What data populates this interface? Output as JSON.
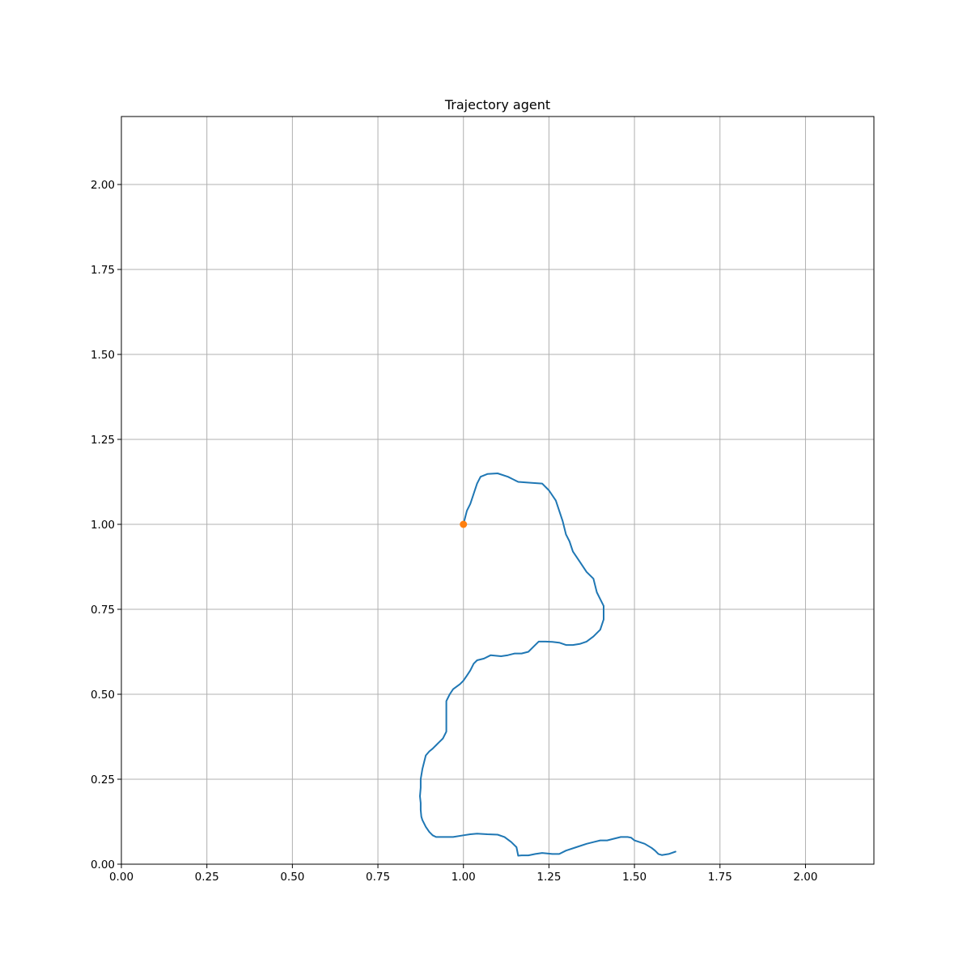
{
  "chart_data": {
    "type": "line",
    "title": "Trajectory agent",
    "xlabel": "",
    "ylabel": "",
    "xlim": [
      0,
      2.2
    ],
    "ylim": [
      0,
      2.2
    ],
    "grid": true,
    "xticks": [
      "0.00",
      "0.25",
      "0.50",
      "0.75",
      "1.00",
      "1.25",
      "1.50",
      "1.75",
      "2.00"
    ],
    "yticks": [
      "0.00",
      "0.25",
      "0.50",
      "0.75",
      "1.00",
      "1.25",
      "1.50",
      "1.75",
      "2.00"
    ],
    "series": [
      {
        "type": "line",
        "color": "#1f77b4",
        "x": [
          1.0,
          1.01,
          1.02,
          1.03,
          1.04,
          1.05,
          1.07,
          1.1,
          1.13,
          1.16,
          1.2,
          1.23,
          1.25,
          1.27,
          1.28,
          1.29,
          1.3,
          1.31,
          1.32,
          1.34,
          1.36,
          1.38,
          1.39,
          1.4,
          1.41,
          1.41,
          1.4,
          1.38,
          1.36,
          1.34,
          1.32,
          1.3,
          1.28,
          1.26,
          1.24,
          1.22,
          1.21,
          1.19,
          1.17,
          1.15,
          1.13,
          1.11,
          1.08,
          1.06,
          1.04,
          1.03,
          1.02,
          1.01,
          1.0,
          0.99,
          0.97,
          0.96,
          0.95,
          0.95,
          0.95,
          0.95,
          0.94,
          0.93,
          0.92,
          0.91,
          0.9,
          0.89,
          0.885,
          0.88,
          0.875,
          0.875,
          0.873,
          0.875,
          0.875,
          0.877,
          0.88,
          0.89,
          0.9,
          0.91,
          0.92,
          0.94,
          0.97,
          1.0,
          1.02,
          1.04,
          1.07,
          1.1,
          1.12,
          1.14,
          1.155,
          1.16,
          1.17,
          1.19,
          1.21,
          1.23,
          1.26,
          1.28,
          1.3,
          1.33,
          1.36,
          1.38,
          1.4,
          1.42,
          1.44,
          1.46,
          1.48,
          1.49,
          1.5,
          1.53,
          1.55,
          1.56,
          1.57,
          1.58,
          1.6,
          1.62
        ],
        "y": [
          1.0,
          1.04,
          1.06,
          1.09,
          1.12,
          1.14,
          1.148,
          1.15,
          1.14,
          1.125,
          1.122,
          1.12,
          1.1,
          1.07,
          1.04,
          1.01,
          0.97,
          0.95,
          0.92,
          0.89,
          0.86,
          0.84,
          0.8,
          0.78,
          0.76,
          0.72,
          0.69,
          0.67,
          0.655,
          0.648,
          0.645,
          0.645,
          0.652,
          0.654,
          0.655,
          0.655,
          0.645,
          0.625,
          0.62,
          0.62,
          0.615,
          0.612,
          0.615,
          0.605,
          0.6,
          0.59,
          0.57,
          0.555,
          0.54,
          0.53,
          0.515,
          0.5,
          0.48,
          0.44,
          0.4,
          0.39,
          0.37,
          0.36,
          0.35,
          0.34,
          0.332,
          0.32,
          0.3,
          0.28,
          0.25,
          0.225,
          0.2,
          0.18,
          0.16,
          0.14,
          0.13,
          0.11,
          0.095,
          0.085,
          0.08,
          0.08,
          0.08,
          0.085,
          0.088,
          0.09,
          0.088,
          0.087,
          0.08,
          0.065,
          0.05,
          0.025,
          0.026,
          0.026,
          0.03,
          0.033,
          0.03,
          0.03,
          0.04,
          0.05,
          0.06,
          0.065,
          0.07,
          0.07,
          0.075,
          0.08,
          0.08,
          0.078,
          0.07,
          0.06,
          0.048,
          0.04,
          0.03,
          0.027,
          0.03,
          0.037
        ]
      },
      {
        "type": "scatter",
        "color": "#ff7f0e",
        "x": [
          1.0
        ],
        "y": [
          1.0
        ]
      }
    ]
  }
}
